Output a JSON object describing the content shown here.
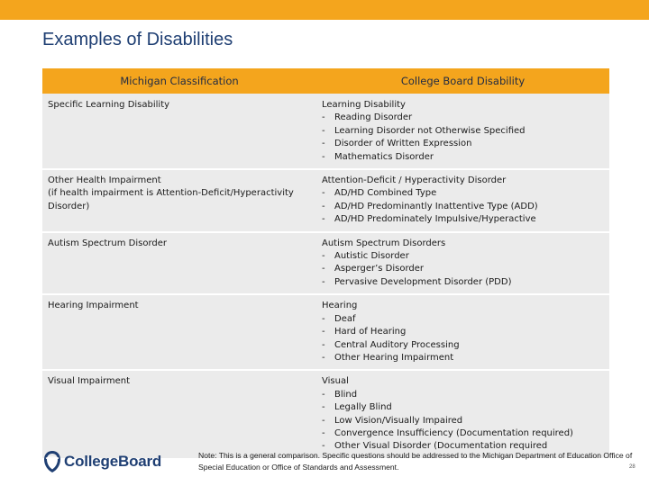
{
  "slide": {
    "title": "Examples of Disabilities",
    "note": "Note:  This is a general comparison.  Specific questions should be addressed to the Michigan Department of Education Office of Special Education or Office of Standards and Assessment.",
    "page_number": "28",
    "logo_text": "CollegeBoard"
  },
  "colors": {
    "accent": "#f4a51d",
    "title": "#1f3f73",
    "row_bg": "#ebebeb"
  },
  "table": {
    "headers": [
      "Michigan Classification",
      "College Board Disability"
    ],
    "rows": [
      {
        "michigan": [
          "Specific Learning Disability"
        ],
        "college_board": {
          "heading": "Learning Disability",
          "items": [
            "Reading Disorder",
            "Learning Disorder not Otherwise Specified",
            "Disorder of Written Expression",
            "Mathematics Disorder"
          ]
        }
      },
      {
        "michigan": [
          "Other Health Impairment",
          "(if health impairment is Attention-Deficit/Hyperactivity",
          "Disorder)"
        ],
        "college_board": {
          "heading": "Attention-Deficit / Hyperactivity Disorder",
          "items": [
            "AD/HD Combined Type",
            "AD/HD Predominantly Inattentive Type (ADD)",
            "AD/HD Predominately Impulsive/Hyperactive"
          ]
        }
      },
      {
        "michigan": [
          "Autism Spectrum Disorder"
        ],
        "college_board": {
          "heading": "Autism Spectrum Disorders",
          "items": [
            "Autistic Disorder",
            "Asperger’s Disorder",
            "Pervasive Development Disorder (PDD)"
          ]
        }
      },
      {
        "michigan": [
          "Hearing Impairment"
        ],
        "college_board": {
          "heading": "Hearing",
          "items": [
            "Deaf",
            "Hard of Hearing",
            "Central Auditory Processing",
            "Other Hearing Impairment"
          ]
        }
      },
      {
        "michigan": [
          "Visual Impairment"
        ],
        "college_board": {
          "heading": "Visual",
          "items": [
            "Blind",
            "Legally Blind",
            "Low Vision/Visually Impaired",
            "Convergence Insufficiency (Documentation required)",
            "Other Visual Disorder (Documentation required"
          ]
        }
      }
    ]
  }
}
